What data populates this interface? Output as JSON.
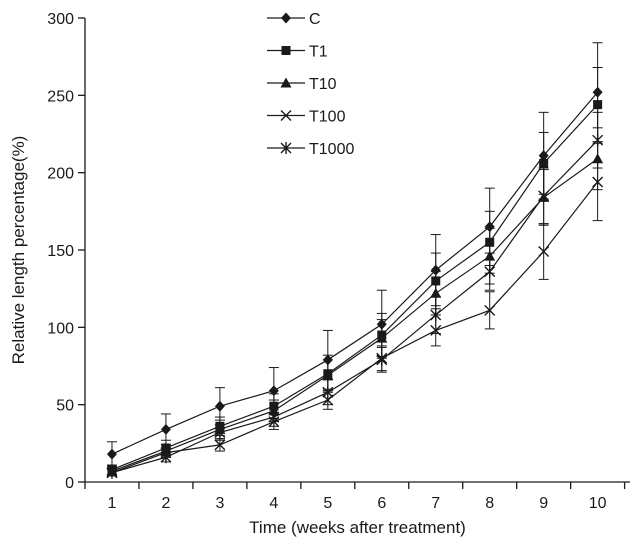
{
  "chart_data": {
    "type": "line",
    "xlabel": "Time (weeks after treatment)",
    "ylabel": "Relative length percentage(%)",
    "x": [
      1,
      2,
      3,
      4,
      5,
      6,
      7,
      8,
      9,
      10
    ],
    "ylim": [
      0,
      300
    ],
    "xlim": [
      0.5,
      10.6
    ],
    "yticks": [
      0,
      50,
      100,
      150,
      200,
      250,
      300
    ],
    "xticks": [
      1,
      2,
      3,
      4,
      5,
      6,
      7,
      8,
      9,
      10
    ],
    "grid": false,
    "legend": "top-center",
    "series": [
      {
        "name": "C",
        "marker": "diamond",
        "values": [
          18,
          34,
          49,
          59,
          79,
          102,
          137,
          165,
          211,
          252
        ],
        "error": [
          8,
          10,
          12,
          15,
          19,
          22,
          23,
          25,
          28,
          32
        ]
      },
      {
        "name": "T1",
        "marker": "square",
        "values": [
          8,
          22,
          36,
          49,
          70,
          95,
          130,
          155,
          206,
          244
        ],
        "error": [
          3,
          5,
          6,
          8,
          12,
          14,
          18,
          20,
          20,
          24
        ]
      },
      {
        "name": "T10",
        "marker": "triangle",
        "values": [
          7,
          20,
          34,
          46,
          69,
          93,
          122,
          146,
          184,
          209
        ],
        "error": [
          2,
          4,
          6,
          7,
          10,
          12,
          14,
          18,
          18,
          20
        ]
      },
      {
        "name": "T100",
        "marker": "x",
        "values": [
          6,
          19,
          24,
          39,
          53,
          80,
          98,
          111,
          149,
          194
        ],
        "error": [
          2,
          3,
          4,
          5,
          6,
          8,
          10,
          12,
          18,
          25
        ]
      },
      {
        "name": "T1000",
        "marker": "asterisk",
        "values": [
          6,
          16,
          32,
          42,
          58,
          79,
          108,
          136,
          185,
          221
        ],
        "error": [
          2,
          3,
          5,
          6,
          8,
          8,
          12,
          12,
          18,
          18
        ]
      }
    ]
  }
}
